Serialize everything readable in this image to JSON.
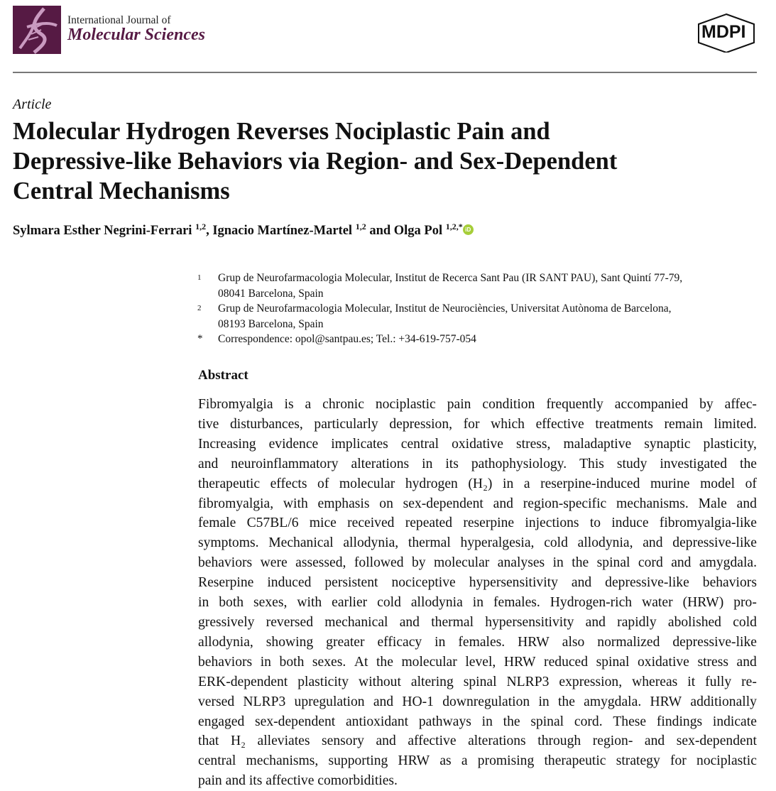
{
  "journal": {
    "line1": "International Journal of",
    "line2": "Molecular Sciences",
    "publisher": "MDPI",
    "brand_color": "#561a44"
  },
  "article_type": "Article",
  "title_lines": [
    "Molecular Hydrogen Reverses Nociplastic Pain and",
    "Depressive-like Behaviors via Region- and Sex-Dependent",
    "Central Mechanisms"
  ],
  "authors": [
    {
      "name": "Sylmara Esther Negrini-Ferrari",
      "sup": "1,2",
      "sep": ", "
    },
    {
      "name": "Ignacio Martínez-Martel",
      "sup": "1,2",
      "sep": " and "
    },
    {
      "name": "Olga Pol",
      "sup": "1,2,*",
      "sep": ""
    }
  ],
  "orcid_icon": "iD",
  "affiliations": [
    {
      "mark": "1",
      "lines": [
        "Grup de Neurofarmacologia Molecular, Institut de Recerca Sant Pau (IR SANT PAU), Sant Quintí 77-79,",
        "08041 Barcelona, Spain"
      ]
    },
    {
      "mark": "2",
      "lines": [
        "Grup de Neurofarmacologia Molecular, Institut de Neurociències, Universitat Autònoma de Barcelona,",
        "08193 Barcelona, Spain"
      ]
    },
    {
      "mark": "*",
      "lines": [
        "Correspondence: opol@santpau.es; Tel.: +34-619-757-054"
      ]
    }
  ],
  "abstract": {
    "heading": "Abstract",
    "lines": [
      "Fibromyalgia is a chronic nociplastic pain condition frequently accompanied by affec-",
      "tive disturbances, particularly depression, for which effective treatments remain limited.",
      "Increasing evidence implicates central oxidative stress, maladaptive synaptic plasticity,",
      "and neuroinflammatory alterations in its pathophysiology. This study investigated the",
      "therapeutic effects of molecular hydrogen (H₂) in a reserpine-induced murine model of",
      "fibromyalgia, with emphasis on sex-dependent and region-specific mechanisms. Male and",
      "female C57BL/6 mice received repeated reserpine injections to induce fibromyalgia-like",
      "symptoms. Mechanical allodynia, thermal hyperalgesia, cold allodynia, and depressive-like",
      "behaviors were assessed, followed by molecular analyses in the spinal cord and amygdala.",
      "Reserpine induced persistent nociceptive hypersensitivity and depressive-like behaviors",
      "in both sexes, with earlier cold allodynia in females. Hydrogen-rich water (HRW) pro-",
      "gressively reversed mechanical and thermal hypersensitivity and rapidly abolished cold",
      "allodynia, showing greater efficacy in females. HRW also normalized depressive-like",
      "behaviors in both sexes. At the molecular level, HRW reduced spinal oxidative stress and",
      "ERK-dependent plasticity without altering spinal NLRP3 expression, whereas it fully re-",
      "versed NLRP3 upregulation and HO-1 downregulation in the amygdala. HRW additionally",
      "engaged sex-dependent antioxidant pathways in the spinal cord. These findings indicate",
      "that H₂ alleviates sensory and affective alterations through region- and sex-dependent",
      "central mechanisms, supporting HRW as a promising therapeutic strategy for nociplastic",
      "pain and its affective comorbidities."
    ]
  }
}
